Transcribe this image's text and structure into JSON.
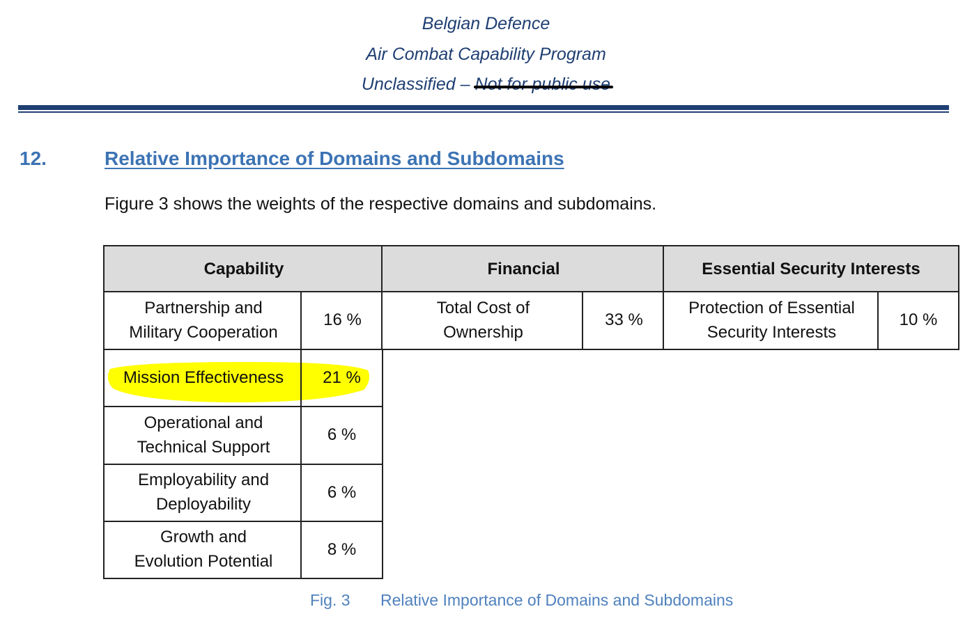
{
  "header": {
    "org": "Belgian Defence",
    "program": "Air Combat Capability Program",
    "classification_prefix": "Unclassified –",
    "classification_struck": "Not for public use"
  },
  "section": {
    "number": "12.",
    "title": "Relative Importance of Domains and Subdomains",
    "intro": "Figure 3 shows the weights of the respective domains and subdomains."
  },
  "table": {
    "domains": {
      "capability": "Capability",
      "financial": "Financial",
      "essential_security": "Essential Security Interests"
    },
    "capability_rows": [
      {
        "line1": "Partnership and",
        "line2": "Military Cooperation",
        "weight": "16 %"
      },
      {
        "line1": "Mission Effectiveness",
        "line2": "",
        "weight": "21 %",
        "highlighted": true
      },
      {
        "line1": "Operational and",
        "line2": "Technical Support",
        "weight": "6 %"
      },
      {
        "line1": "Employability and",
        "line2": "Deployability",
        "weight": "6 %"
      },
      {
        "line1": "Growth and",
        "line2": "Evolution Potential",
        "weight": "8 %"
      }
    ],
    "financial_row": {
      "line1": "Total Cost of",
      "line2": "Ownership",
      "weight": "33 %"
    },
    "security_row": {
      "line1": "Protection of Essential",
      "line2": "Security Interests",
      "weight": "10 %"
    },
    "highlight_color": "#ffff00"
  },
  "caption": {
    "fig": "Fig. 3",
    "text": "Relative Importance of Domains and Subdomains"
  },
  "colors": {
    "header_text": "#1f3f73",
    "section_title": "#3c73b4",
    "caption": "#4f81bd",
    "table_header_bg": "#dcdcdc"
  }
}
